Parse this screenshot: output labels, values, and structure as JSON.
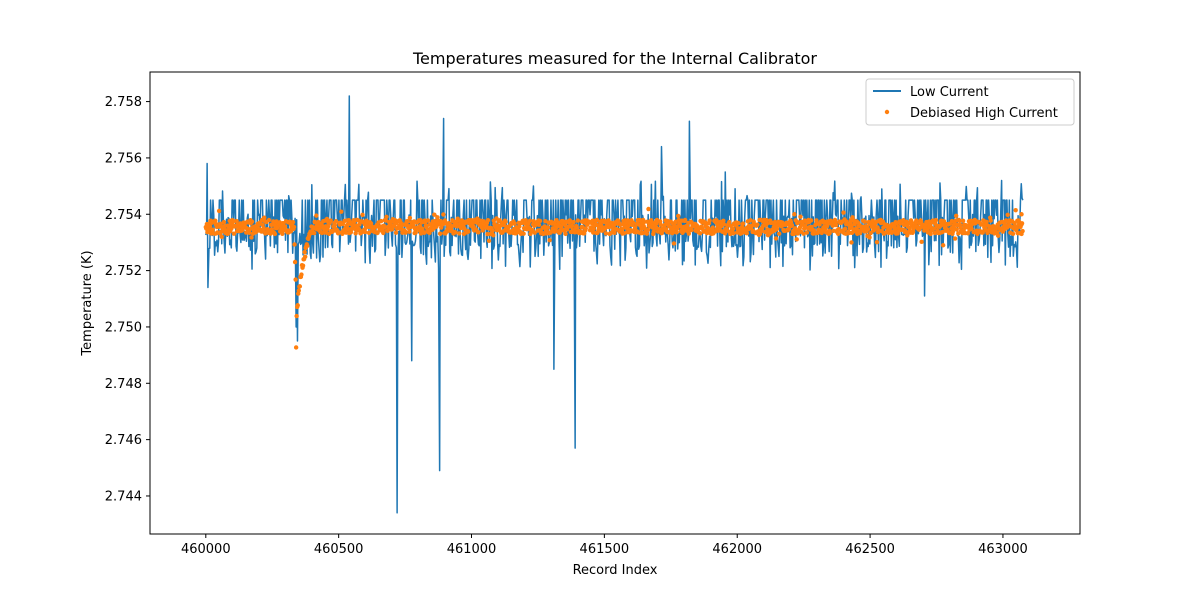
{
  "chart_data": {
    "type": "line",
    "title": "Temperatures measured for the Internal Calibrator",
    "xlabel": "Record Index",
    "ylabel": "Temperature (K)",
    "xlim": [
      459790,
      463290
    ],
    "ylim": [
      2.74265,
      2.75905
    ],
    "x_ticks": [
      460000,
      460500,
      461000,
      461500,
      462000,
      462500,
      463000
    ],
    "x_tick_labels": [
      "460000",
      "460500",
      "461000",
      "461500",
      "462000",
      "462500",
      "463000"
    ],
    "y_ticks": [
      2.744,
      2.746,
      2.748,
      2.75,
      2.752,
      2.754,
      2.756,
      2.758
    ],
    "y_tick_labels": [
      "2.744",
      "2.746",
      "2.748",
      "2.750",
      "2.752",
      "2.754",
      "2.756",
      "2.758"
    ],
    "grid": false,
    "legend_position": "upper-right",
    "series": [
      {
        "name": "Low Current",
        "kind": "line",
        "color": "#1f77b4",
        "x_start": 460000,
        "x_end": 463075,
        "baseline": 2.7535,
        "noise_levels": [
          2.7528,
          2.7532,
          2.7535,
          2.7538,
          2.754,
          2.7545,
          2.7525,
          2.752
        ],
        "spikes": [
          {
            "x": 460005,
            "y": 2.7558
          },
          {
            "x": 460008,
            "y": 2.7514
          },
          {
            "x": 460340,
            "y": 2.75
          },
          {
            "x": 460345,
            "y": 2.7495
          },
          {
            "x": 460540,
            "y": 2.7582
          },
          {
            "x": 460720,
            "y": 2.7434
          },
          {
            "x": 460775,
            "y": 2.7488
          },
          {
            "x": 460880,
            "y": 2.7449
          },
          {
            "x": 460895,
            "y": 2.7574
          },
          {
            "x": 461310,
            "y": 2.7485
          },
          {
            "x": 461390,
            "y": 2.7457
          },
          {
            "x": 461715,
            "y": 2.7564
          },
          {
            "x": 461820,
            "y": 2.7573
          },
          {
            "x": 461955,
            "y": 2.7555
          },
          {
            "x": 462705,
            "y": 2.7511
          },
          {
            "x": 462995,
            "y": 2.7552
          }
        ]
      },
      {
        "name": "Debiased High Current",
        "kind": "scatter",
        "color": "#ff7f0e",
        "x_start": 460000,
        "x_end": 463075,
        "baseline": 2.75355,
        "dip": {
          "x": 460340,
          "min": 2.7494,
          "recover_to": 460400
        },
        "outliers": [
          {
            "x": 462215,
            "y": 2.754
          },
          {
            "x": 462430,
            "y": 2.753
          },
          {
            "x": 462775,
            "y": 2.7529
          },
          {
            "x": 463070,
            "y": 2.754
          },
          {
            "x": 463070,
            "y": 2.7533
          }
        ]
      }
    ]
  }
}
